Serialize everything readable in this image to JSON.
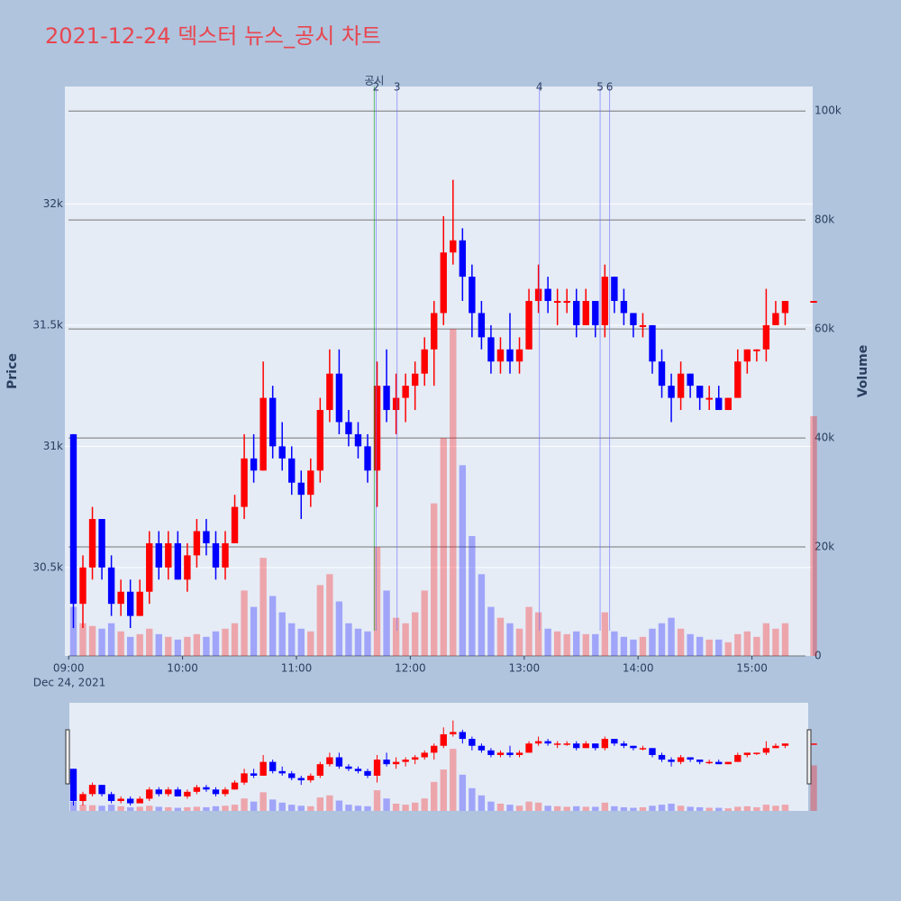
{
  "chart_data": {
    "type": "candlestick",
    "title": "2021-12-24 덱스터 뉴스_공시 차트",
    "y_title": "Price",
    "y2_title": "Volume",
    "x_date_label": "Dec 24, 2021",
    "increasing_color": "#ff0000",
    "decreasing_color": "#0000ff",
    "xlim": [
      "08:58",
      "15:32"
    ],
    "xticks": [
      "09:00",
      "10:00",
      "11:00",
      "12:00",
      "13:00",
      "14:00",
      "15:00"
    ],
    "ylim": [
      30135,
      32485
    ],
    "yticks": [
      {
        "value": 30500,
        "label": "30.5k"
      },
      {
        "value": 31000,
        "label": "31k"
      },
      {
        "value": 31500,
        "label": "31.5k"
      },
      {
        "value": 32000,
        "label": "32k"
      }
    ],
    "y2lim": [
      0,
      104500
    ],
    "y2ticks": [
      0,
      {
        "value": 20000,
        "label": "20k"
      },
      {
        "value": 40000,
        "label": "40k"
      },
      {
        "value": 60000,
        "label": "60k"
      },
      {
        "value": 80000,
        "label": "80k"
      },
      {
        "value": 100000,
        "label": "100k"
      }
    ],
    "x": [
      "09:00",
      "09:05",
      "09:10",
      "09:15",
      "09:20",
      "09:25",
      "09:30",
      "09:35",
      "09:40",
      "09:45",
      "09:50",
      "09:55",
      "10:00",
      "10:05",
      "10:10",
      "10:15",
      "10:20",
      "10:25",
      "10:30",
      "10:35",
      "10:40",
      "10:45",
      "10:50",
      "10:55",
      "11:00",
      "11:05",
      "11:10",
      "11:15",
      "11:20",
      "11:25",
      "11:30",
      "11:35",
      "11:40",
      "11:45",
      "11:50",
      "11:55",
      "12:00",
      "12:05",
      "12:10",
      "12:15",
      "12:20",
      "12:25",
      "12:30",
      "12:35",
      "12:40",
      "12:45",
      "12:50",
      "12:55",
      "13:00",
      "13:05",
      "13:10",
      "13:15",
      "13:20",
      "13:25",
      "13:30",
      "13:35",
      "13:40",
      "13:45",
      "13:50",
      "13:55",
      "14:00",
      "14:05",
      "14:10",
      "14:15",
      "14:20",
      "14:25",
      "14:30",
      "14:35",
      "14:40",
      "14:45",
      "14:50",
      "14:55",
      "15:00",
      "15:05",
      "15:10",
      "15:15",
      "15:30"
    ],
    "open": [
      31050,
      30350,
      30500,
      30700,
      30500,
      30350,
      30400,
      30300,
      30400,
      30600,
      30500,
      30600,
      30450,
      30550,
      30650,
      30600,
      30500,
      30600,
      30750,
      30950,
      30900,
      31200,
      31000,
      30950,
      30850,
      30800,
      30900,
      31150,
      31300,
      31100,
      31050,
      31000,
      30900,
      31250,
      31150,
      31200,
      31250,
      31300,
      31400,
      31550,
      31800,
      31850,
      31700,
      31550,
      31450,
      31350,
      31400,
      31350,
      31400,
      31600,
      31650,
      31600,
      31600,
      31600,
      31500,
      31600,
      31500,
      31700,
      31600,
      31550,
      31500,
      31500,
      31350,
      31250,
      31200,
      31300,
      31250,
      31200,
      31200,
      31150,
      31200,
      31350,
      31400,
      31400,
      31500,
      31550,
      31600
    ],
    "high": [
      31050,
      30550,
      30750,
      30700,
      30550,
      30450,
      30450,
      30450,
      30650,
      30650,
      30650,
      30650,
      30600,
      30700,
      30700,
      30650,
      30650,
      30800,
      31050,
      31050,
      31350,
      31250,
      31100,
      31000,
      30900,
      30950,
      31200,
      31400,
      31400,
      31150,
      31100,
      31050,
      31350,
      31400,
      31300,
      31300,
      31350,
      31450,
      31600,
      31950,
      32100,
      31900,
      31750,
      31600,
      31500,
      31450,
      31550,
      31450,
      31650,
      31750,
      31700,
      31650,
      31650,
      31650,
      31650,
      31600,
      31750,
      31700,
      31650,
      31550,
      31550,
      31500,
      31400,
      31300,
      31350,
      31300,
      31250,
      31250,
      31250,
      31200,
      31400,
      31400,
      31400,
      31650,
      31600,
      31600,
      31600
    ],
    "low": [
      30250,
      30250,
      30450,
      30450,
      30300,
      30300,
      30250,
      30300,
      30350,
      30450,
      30450,
      30450,
      30400,
      30500,
      30550,
      30450,
      30450,
      30600,
      30700,
      30850,
      30900,
      30950,
      30900,
      30800,
      30700,
      30750,
      30850,
      31100,
      31050,
      31000,
      30950,
      30850,
      30750,
      31100,
      31050,
      31100,
      31150,
      31250,
      31250,
      31500,
      31750,
      31600,
      31450,
      31400,
      31300,
      31300,
      31300,
      31300,
      31400,
      31550,
      31550,
      31500,
      31550,
      31450,
      31500,
      31450,
      31450,
      31550,
      31500,
      31450,
      31450,
      31300,
      31200,
      31100,
      31150,
      31200,
      31150,
      31150,
      31150,
      31150,
      31200,
      31300,
      31350,
      31350,
      31500,
      31500,
      31600
    ],
    "close": [
      30350,
      30500,
      30700,
      30500,
      30350,
      30400,
      30300,
      30400,
      30600,
      30500,
      30600,
      30450,
      30550,
      30650,
      30600,
      30500,
      30600,
      30750,
      30950,
      30900,
      31200,
      31000,
      30950,
      30850,
      30800,
      30900,
      31150,
      31300,
      31100,
      31050,
      31000,
      30900,
      31250,
      31150,
      31200,
      31250,
      31300,
      31400,
      31550,
      31800,
      31850,
      31700,
      31550,
      31450,
      31350,
      31400,
      31350,
      31400,
      31600,
      31650,
      31600,
      31600,
      31600,
      31500,
      31600,
      31500,
      31700,
      31600,
      31550,
      31500,
      31500,
      31350,
      31250,
      31200,
      31300,
      31250,
      31200,
      31200,
      31150,
      31200,
      31350,
      31400,
      31400,
      31500,
      31550,
      31600,
      31600
    ],
    "volume": [
      9000,
      6000,
      5500,
      5000,
      6000,
      4500,
      3500,
      4000,
      5000,
      4000,
      3500,
      3000,
      3500,
      4000,
      3500,
      4500,
      5000,
      6000,
      12000,
      9000,
      18000,
      11000,
      8000,
      6000,
      5000,
      4500,
      13000,
      15000,
      10000,
      6000,
      5000,
      4500,
      20000,
      12000,
      7000,
      6000,
      8000,
      12000,
      28000,
      40000,
      60000,
      35000,
      22000,
      15000,
      9000,
      7000,
      6000,
      5000,
      9000,
      8000,
      5000,
      4500,
      4000,
      4500,
      4000,
      4000,
      8000,
      4500,
      3500,
      3000,
      3500,
      5000,
      6000,
      7000,
      5000,
      4000,
      3500,
      3000,
      3000,
      2500,
      4000,
      4500,
      3500,
      6000,
      5000,
      6000,
      44000
    ],
    "annotations": [
      {
        "x": "11:41",
        "label": "공시",
        "color": "#00a000"
      },
      {
        "x": "11:42",
        "label": "2",
        "color": "#6a6aff"
      },
      {
        "x": "11:53",
        "label": "3",
        "color": "#6a6aff"
      },
      {
        "x": "13:08",
        "label": "4",
        "color": "#6a6aff"
      },
      {
        "x": "13:40",
        "label": "5",
        "color": "#6a6aff"
      },
      {
        "x": "13:45",
        "label": "6",
        "color": "#6a6aff"
      }
    ]
  }
}
